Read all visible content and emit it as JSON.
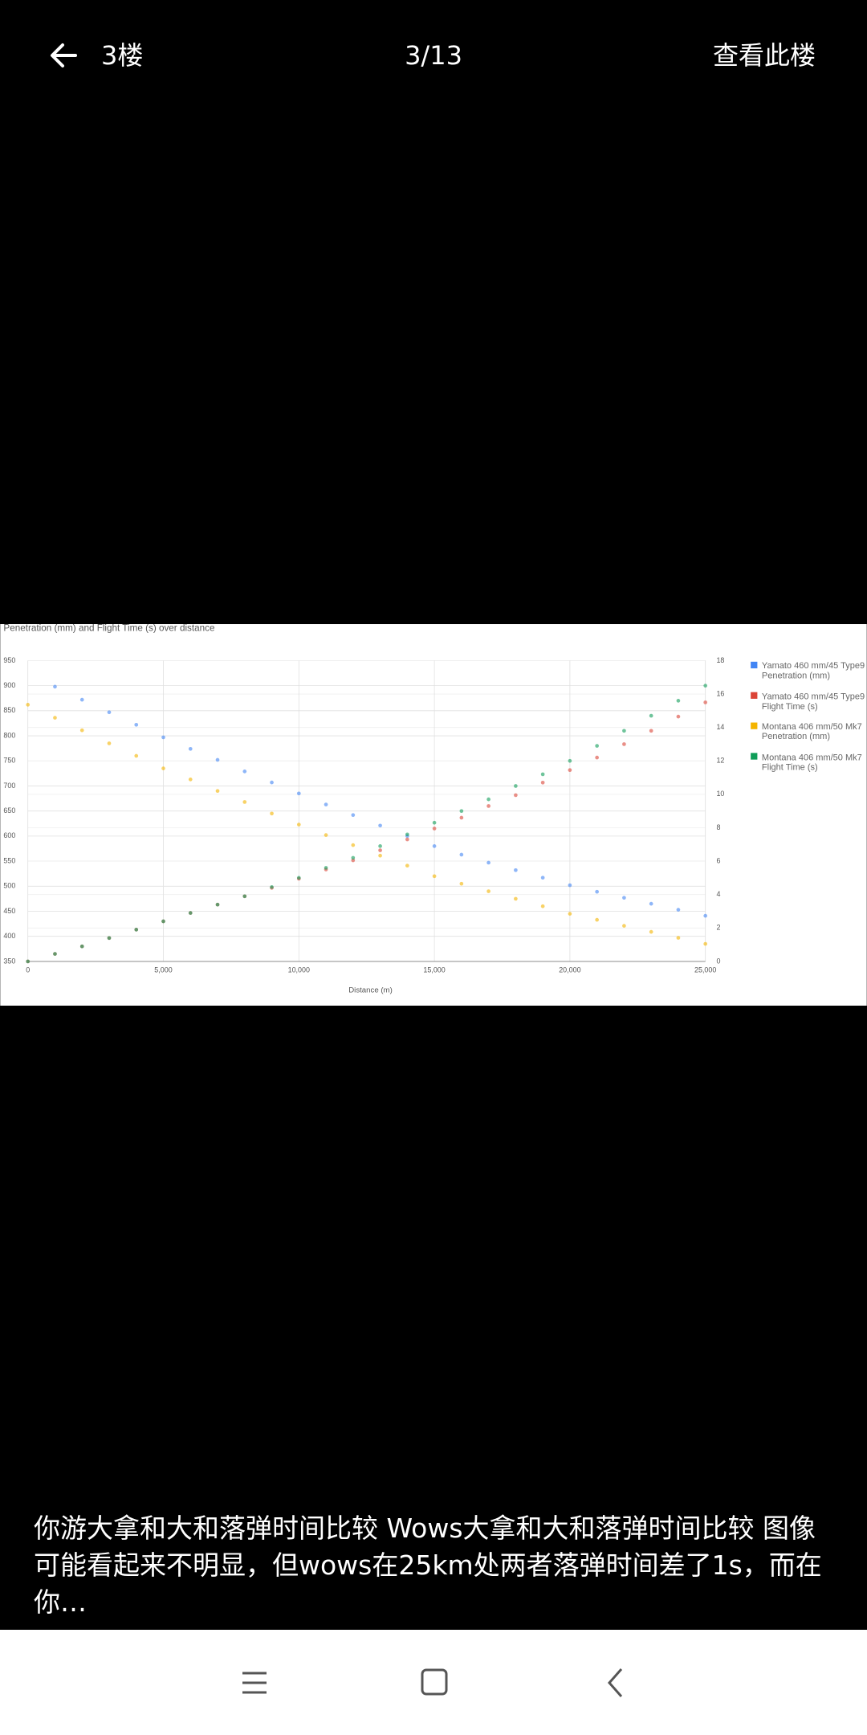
{
  "header": {
    "floor": "3楼",
    "page": "3/13",
    "action": "查看此楼"
  },
  "chart_data": {
    "type": "scatter",
    "title": "Penetration (mm) and Flight Time (s) over distance",
    "x_label": "Distance (m)",
    "x": [
      0,
      1000,
      2000,
      3000,
      4000,
      5000,
      6000,
      7000,
      8000,
      9000,
      10000,
      11000,
      12000,
      13000,
      14000,
      15000,
      16000,
      17000,
      18000,
      19000,
      20000,
      21000,
      22000,
      23000,
      24000,
      25000
    ],
    "xlim": [
      0,
      25000
    ],
    "xticks": [
      0,
      {
        "value": 5000,
        "label": "5,000"
      },
      {
        "value": 10000,
        "label": "10,000"
      },
      {
        "value": 15000,
        "label": "15,000"
      },
      {
        "value": 20000,
        "label": "20,000"
      },
      {
        "value": 25000,
        "label": "25,000"
      }
    ],
    "ylim": [
      350,
      950
    ],
    "yticks": [
      350,
      400,
      450,
      500,
      550,
      600,
      650,
      700,
      750,
      800,
      850,
      900,
      950
    ],
    "y2lim": [
      0,
      18
    ],
    "y2ticks": [
      0,
      2,
      4,
      6,
      8,
      10,
      12,
      14,
      16,
      18
    ],
    "grid": true,
    "legend": "right",
    "series": [
      {
        "name": "Yamato 460 mm/45 Type9 Penetration (mm)",
        "color": "#4285f4",
        "axis": "y",
        "values": [
          null,
          898,
          872,
          847,
          822,
          797,
          774,
          752,
          729,
          707,
          685,
          663,
          642,
          621,
          600,
          580,
          563,
          547,
          532,
          517,
          502,
          489,
          477,
          465,
          453,
          441
        ]
      },
      {
        "name": "Yamato 460 mm/45 Type9 Flight Time (s)",
        "color": "#db4437",
        "axis": "y2",
        "values": [
          0,
          0.45,
          0.9,
          1.4,
          1.9,
          2.4,
          2.9,
          3.4,
          3.9,
          4.4,
          4.95,
          5.5,
          6.05,
          6.65,
          7.3,
          7.95,
          8.6,
          9.3,
          9.95,
          10.7,
          11.45,
          12.2,
          13.0,
          13.8,
          14.65,
          15.5
        ]
      },
      {
        "name": "Montana 406 mm/50 Mk7 Penetration (mm)",
        "color": "#f4b400",
        "axis": "y",
        "values": [
          862,
          836,
          811,
          785,
          760,
          735,
          713,
          690,
          668,
          645,
          623,
          602,
          582,
          561,
          541,
          520,
          505,
          490,
          475,
          460,
          445,
          433,
          421,
          409,
          397,
          385
        ]
      },
      {
        "name": "Montana 406 mm/50 Mk7 Flight Time (s)",
        "color": "#0f9d58",
        "axis": "y2",
        "values": [
          0,
          0.45,
          0.9,
          1.4,
          1.9,
          2.4,
          2.9,
          3.4,
          3.9,
          4.45,
          5.0,
          5.6,
          6.2,
          6.9,
          7.6,
          8.3,
          9.0,
          9.7,
          10.5,
          11.2,
          12.0,
          12.9,
          13.8,
          14.7,
          15.6,
          16.5
        ]
      }
    ]
  },
  "caption": "你游大拿和大和落弹时间比较 Wows大拿和大和落弹时间比较 图像可能看起来不明显，但wows在25km处两者落弹时间差了1s，而在你…"
}
